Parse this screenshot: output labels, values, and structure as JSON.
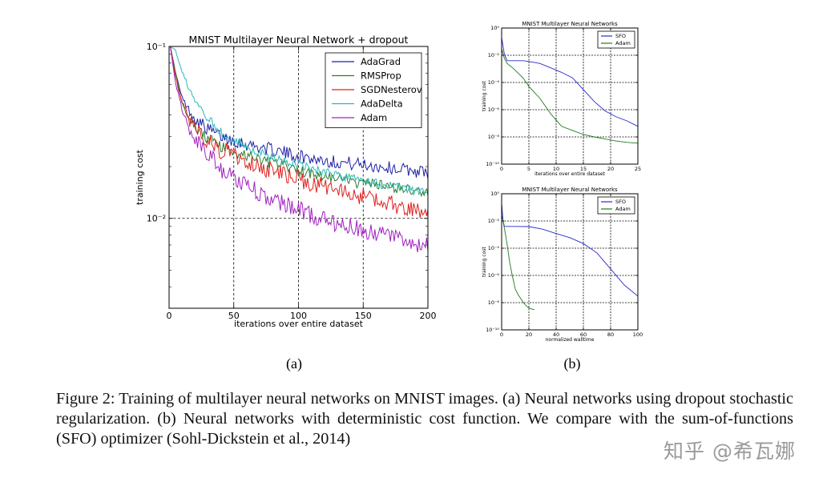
{
  "caption": {
    "text": "Figure 2: Training of multilayer neural networks on MNIST images. (a) Neural networks using dropout stochastic regularization. (b) Neural networks with deterministic cost function. We compare with the sum-of-functions (SFO) optimizer (Sohl-Dickstein et al., 2014)"
  },
  "watermark": "知乎 @希瓦娜",
  "chart_data": [
    {
      "panel": "a",
      "panel_label": "(a)",
      "type": "line",
      "title": "MNIST Multilayer Neural Network + dropout",
      "xlabel": "iterations over entire dataset",
      "ylabel": "training cost",
      "yscale": "log",
      "xlim": [
        0,
        200
      ],
      "ylim": [
        0.003,
        0.1
      ],
      "x_ticks": [
        0,
        50,
        100,
        150,
        200
      ],
      "x_tick_labels": [
        "0",
        "50",
        "100",
        "150",
        "200"
      ],
      "y_ticks": [
        0.01,
        0.1
      ],
      "y_tick_labels": [
        "10⁻²",
        "10⁻¹"
      ],
      "grid": true,
      "legend": "top-right",
      "x": [
        1,
        5,
        10,
        15,
        20,
        30,
        40,
        50,
        60,
        75,
        90,
        100,
        125,
        150,
        175,
        200
      ],
      "series": [
        {
          "name": "AdaGrad",
          "color": "#1f1fa8",
          "noise": 0.045,
          "values": [
            0.1,
            0.07,
            0.05,
            0.043,
            0.038,
            0.033,
            0.03,
            0.0285,
            0.027,
            0.0255,
            0.024,
            0.023,
            0.0215,
            0.0205,
            0.0195,
            0.0185
          ]
        },
        {
          "name": "RMSProp",
          "color": "#2e7d2e",
          "noise": 0.04,
          "values": [
            0.1,
            0.07,
            0.048,
            0.039,
            0.034,
            0.029,
            0.026,
            0.0245,
            0.023,
            0.0215,
            0.02,
            0.019,
            0.0172,
            0.016,
            0.015,
            0.014
          ]
        },
        {
          "name": "SGDNesterov",
          "color": "#e02020",
          "noise": 0.06,
          "values": [
            0.1,
            0.066,
            0.046,
            0.038,
            0.033,
            0.028,
            0.025,
            0.0235,
            0.0215,
            0.0195,
            0.018,
            0.0168,
            0.0148,
            0.0133,
            0.012,
            0.011
          ]
        },
        {
          "name": "AdaDelta",
          "color": "#2ab8b8",
          "noise": 0.03,
          "values": [
            0.1,
            0.095,
            0.072,
            0.058,
            0.048,
            0.038,
            0.032,
            0.0285,
            0.026,
            0.0235,
            0.0215,
            0.0205,
            0.0182,
            0.0165,
            0.0152,
            0.014
          ]
        },
        {
          "name": "Adam",
          "color": "#a020c0",
          "noise": 0.06,
          "values": [
            0.1,
            0.062,
            0.042,
            0.034,
            0.029,
            0.0235,
            0.0195,
            0.0172,
            0.0155,
            0.0135,
            0.012,
            0.0112,
            0.0096,
            0.0085,
            0.0077,
            0.0069
          ]
        }
      ]
    },
    {
      "panel": "b-top",
      "panel_label": "(b)",
      "type": "line",
      "title": "MNIST Multilayer Neural Networks",
      "xlabel": "iterations over entire dataset",
      "ylabel": "training cost",
      "yscale": "log",
      "xlim": [
        0,
        25
      ],
      "ylim": [
        1e-10,
        1
      ],
      "x_ticks": [
        0,
        5,
        10,
        15,
        20,
        25
      ],
      "x_tick_labels": [
        "0",
        "5",
        "10",
        "15",
        "20",
        "25"
      ],
      "y_ticks": [
        1e-10,
        1e-08,
        1e-06,
        0.0001,
        0.01,
        1
      ],
      "y_tick_labels": [
        "10⁻¹⁰",
        "10⁻⁸",
        "10⁻⁶",
        "10⁻⁴",
        "10⁻²",
        "10⁰"
      ],
      "grid": true,
      "legend": "top-right",
      "x": [
        0,
        0.5,
        1,
        2,
        3,
        4,
        5,
        7,
        9,
        11,
        13,
        15,
        17,
        19,
        21,
        23,
        25
      ],
      "series": [
        {
          "name": "SFO",
          "color": "#2a2ad0",
          "values": [
            0.2,
            0.012,
            0.004,
            0.004,
            0.004,
            0.004,
            0.0035,
            0.0025,
            0.0012,
            0.00055,
            0.00022,
            3e-05,
            4e-06,
            8e-07,
            3e-07,
            1.5e-07,
            6e-08
          ]
        },
        {
          "name": "Adam",
          "color": "#1f7a1f",
          "values": [
            0.03,
            0.006,
            0.0025,
            0.0012,
            0.0005,
            0.0002,
            5e-05,
            7e-06,
            5e-07,
            6e-08,
            3e-08,
            1.5e-08,
            1e-08,
            7e-09,
            5e-09,
            4e-09,
            3.5e-09
          ]
        }
      ]
    },
    {
      "panel": "b-bottom",
      "type": "line",
      "title": "MNIST Multilayer Neural Networks",
      "xlabel": "normalized walltime",
      "ylabel": "training cost",
      "yscale": "log",
      "xlim": [
        0,
        100
      ],
      "ylim": [
        1e-10,
        1
      ],
      "x_ticks": [
        0,
        20,
        40,
        60,
        80,
        100
      ],
      "x_tick_labels": [
        "0",
        "20",
        "40",
        "60",
        "80",
        "100"
      ],
      "y_ticks": [
        1e-10,
        1e-08,
        1e-06,
        0.0001,
        0.01,
        1
      ],
      "y_tick_labels": [
        "10⁻¹⁰",
        "10⁻⁸",
        "10⁻⁶",
        "10⁻⁴",
        "10⁻²",
        "10⁰"
      ],
      "grid": true,
      "legend": "top-right",
      "series": [
        {
          "name": "SFO",
          "color": "#2a2ad0",
          "x": [
            0,
            1,
            2,
            4,
            6,
            10,
            20,
            30,
            40,
            50,
            60,
            70,
            80,
            90,
            100
          ],
          "values": [
            0.2,
            0.012,
            0.004,
            0.004,
            0.004,
            0.004,
            0.0039,
            0.0025,
            0.0012,
            0.0006,
            0.00022,
            4.5e-05,
            3e-06,
            2e-07,
            3e-08
          ]
        },
        {
          "name": "Adam",
          "color": "#1f7a1f",
          "x": [
            0,
            1,
            2,
            3,
            4,
            5,
            6,
            8,
            10,
            12,
            14,
            16,
            18,
            20,
            22,
            24
          ],
          "values": [
            0.03,
            0.01,
            0.003,
            0.0008,
            0.0002,
            4e-05,
            8e-06,
            8e-07,
            1e-07,
            4e-08,
            2e-08,
            1e-08,
            6e-09,
            4e-09,
            3.5e-09,
            3e-09
          ]
        }
      ]
    }
  ]
}
